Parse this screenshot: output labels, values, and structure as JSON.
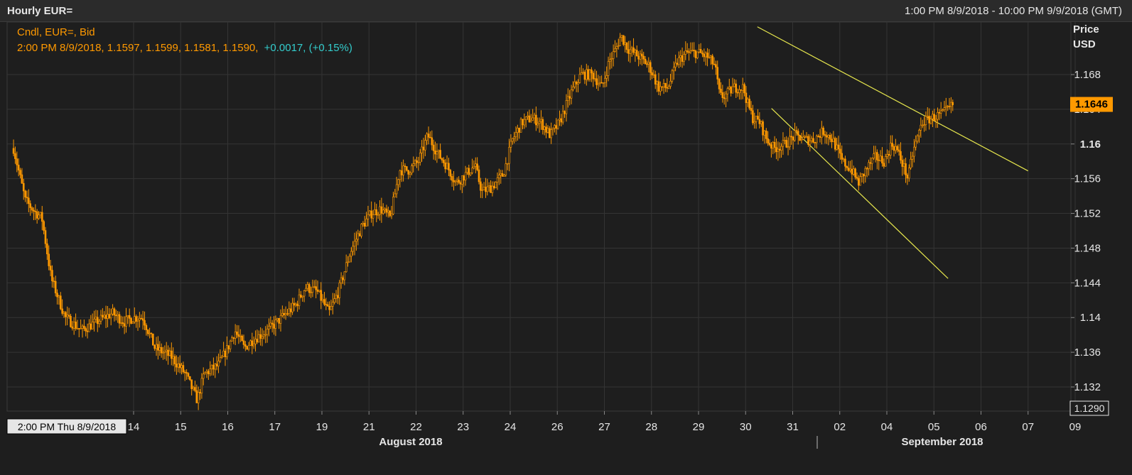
{
  "header": {
    "title": "Hourly EUR=",
    "range": "1:00 PM 8/9/2018 - 10:00 PM 9/9/2018 (GMT)"
  },
  "legend": {
    "line1": "Cndl, EUR=, Bid",
    "line2_values": "2:00 PM 8/9/2018, 1.1597, 1.1599, 1.1581, 1.1590,",
    "line2_change": "+0.0017, (+0.15%)"
  },
  "axis": {
    "title_line1": "Price",
    "title_line2": "USD",
    "current_price": "1.1646",
    "low_marker": "1.1290",
    "cursor_label": "2:00 PM Thu 8/9/2018",
    "month_aug": "August 2018",
    "month_sep": "September 2018"
  },
  "colors": {
    "candle": "#ff9900",
    "trendline": "#e6e64d",
    "change": "#33cccc",
    "grid": "#343434",
    "background": "#1e1e1e",
    "text": "#e6e6e6"
  },
  "chart_data": {
    "type": "line",
    "series_label": "Cndl, EUR=, Bid",
    "ylim": [
      1.129,
      1.1735
    ],
    "yticks": [
      "1.132",
      "1.136",
      "1.14",
      "1.144",
      "1.148",
      "1.152",
      "1.156",
      "1.16",
      "1.164",
      "1.168"
    ],
    "xticks": [
      {
        "label": "14",
        "x": 5
      },
      {
        "label": "15",
        "x": 6
      },
      {
        "label": "16",
        "x": 7
      },
      {
        "label": "17",
        "x": 8
      },
      {
        "label": "19",
        "x": 9
      },
      {
        "label": "21",
        "x": 10
      },
      {
        "label": "22",
        "x": 11
      },
      {
        "label": "23",
        "x": 12
      },
      {
        "label": "24",
        "x": 13
      },
      {
        "label": "26",
        "x": 14
      },
      {
        "label": "27",
        "x": 15
      },
      {
        "label": "28",
        "x": 16
      },
      {
        "label": "29",
        "x": 17
      },
      {
        "label": "30",
        "x": 18
      },
      {
        "label": "31",
        "x": 19
      },
      {
        "label": "02",
        "x": 20
      },
      {
        "label": "04",
        "x": 21
      },
      {
        "label": "05",
        "x": 22
      },
      {
        "label": "06",
        "x": 23
      },
      {
        "label": "07",
        "x": 24
      },
      {
        "label": "09",
        "x": 25
      }
    ],
    "path": [
      [
        2.45,
        1.1595
      ],
      [
        2.7,
        1.1535
      ],
      [
        2.9,
        1.1522
      ],
      [
        3.05,
        1.1515
      ],
      [
        3.25,
        1.1445
      ],
      [
        3.55,
        1.14
      ],
      [
        3.9,
        1.1385
      ],
      [
        4.2,
        1.1395
      ],
      [
        4.55,
        1.1405
      ],
      [
        4.8,
        1.1395
      ],
      [
        5.0,
        1.14
      ],
      [
        5.2,
        1.14
      ],
      [
        5.45,
        1.1365
      ],
      [
        5.8,
        1.1355
      ],
      [
        6.1,
        1.1335
      ],
      [
        6.35,
        1.1305
      ],
      [
        6.5,
        1.1335
      ],
      [
        6.8,
        1.1345
      ],
      [
        7.0,
        1.1365
      ],
      [
        7.15,
        1.1385
      ],
      [
        7.35,
        1.1365
      ],
      [
        7.55,
        1.1375
      ],
      [
        7.85,
        1.1385
      ],
      [
        8.15,
        1.14
      ],
      [
        8.45,
        1.1415
      ],
      [
        8.65,
        1.1435
      ],
      [
        8.9,
        1.143
      ],
      [
        9.15,
        1.1405
      ],
      [
        9.35,
        1.143
      ],
      [
        9.6,
        1.1475
      ],
      [
        9.85,
        1.1505
      ],
      [
        10.05,
        1.152
      ],
      [
        10.25,
        1.1525
      ],
      [
        10.45,
        1.1515
      ],
      [
        10.65,
        1.157
      ],
      [
        10.85,
        1.157
      ],
      [
        11.05,
        1.158
      ],
      [
        11.25,
        1.161
      ],
      [
        11.45,
        1.159
      ],
      [
        11.65,
        1.1575
      ],
      [
        11.85,
        1.1555
      ],
      [
        12.05,
        1.1565
      ],
      [
        12.25,
        1.1575
      ],
      [
        12.4,
        1.1545
      ],
      [
        12.6,
        1.155
      ],
      [
        12.85,
        1.1565
      ],
      [
        13.05,
        1.1605
      ],
      [
        13.25,
        1.1625
      ],
      [
        13.45,
        1.163
      ],
      [
        13.65,
        1.1625
      ],
      [
        13.85,
        1.161
      ],
      [
        14.05,
        1.1625
      ],
      [
        14.3,
        1.166
      ],
      [
        14.5,
        1.168
      ],
      [
        14.75,
        1.168
      ],
      [
        14.95,
        1.1665
      ],
      [
        15.1,
        1.1695
      ],
      [
        15.25,
        1.171
      ],
      [
        15.35,
        1.1725
      ],
      [
        15.5,
        1.171
      ],
      [
        15.75,
        1.17
      ],
      [
        15.95,
        1.169
      ],
      [
        16.15,
        1.1665
      ],
      [
        16.35,
        1.1665
      ],
      [
        16.55,
        1.1695
      ],
      [
        16.75,
        1.1705
      ],
      [
        17.0,
        1.1705
      ],
      [
        17.2,
        1.17
      ],
      [
        17.35,
        1.169
      ],
      [
        17.45,
        1.1655
      ],
      [
        17.55,
        1.1655
      ],
      [
        17.75,
        1.1665
      ],
      [
        17.95,
        1.1665
      ],
      [
        18.05,
        1.1645
      ],
      [
        18.15,
        1.163
      ],
      [
        18.3,
        1.1625
      ],
      [
        18.45,
        1.1605
      ],
      [
        18.6,
        1.1595
      ],
      [
        18.85,
        1.16
      ],
      [
        19.05,
        1.161
      ],
      [
        19.25,
        1.1605
      ],
      [
        19.45,
        1.1605
      ],
      [
        19.65,
        1.1615
      ],
      [
        19.85,
        1.1605
      ],
      [
        20.05,
        1.158
      ],
      [
        20.25,
        1.157
      ],
      [
        20.4,
        1.1555
      ],
      [
        20.55,
        1.157
      ],
      [
        20.75,
        1.1585
      ],
      [
        20.95,
        1.158
      ],
      [
        21.1,
        1.16
      ],
      [
        21.2,
        1.1595
      ],
      [
        21.35,
        1.1575
      ],
      [
        21.45,
        1.156
      ],
      [
        21.55,
        1.159
      ],
      [
        21.75,
        1.1625
      ],
      [
        21.95,
        1.163
      ],
      [
        22.2,
        1.1635
      ],
      [
        22.4,
        1.1645
      ]
    ]
  }
}
